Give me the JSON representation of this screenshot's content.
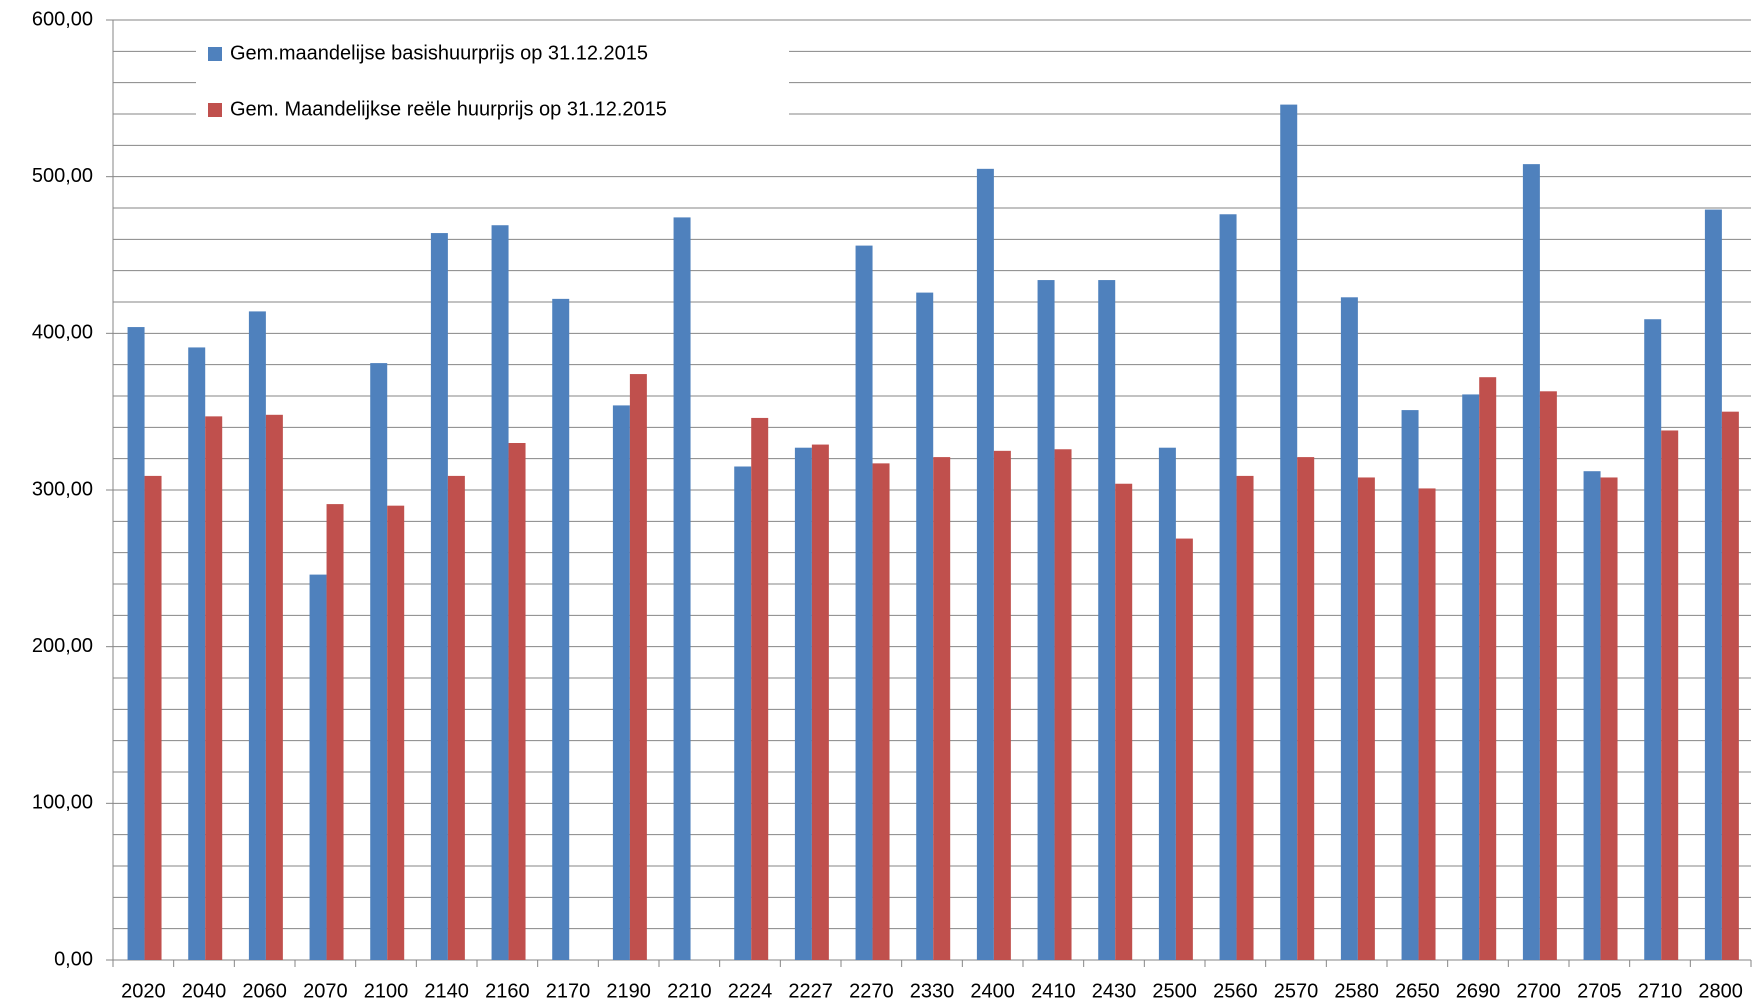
{
  "chart_data": {
    "type": "bar",
    "categories": [
      "2020",
      "2040",
      "2060",
      "2070",
      "2100",
      "2140",
      "2160",
      "2170",
      "2190",
      "2210",
      "2224",
      "2227",
      "2270",
      "2330",
      "2400",
      "2410",
      "2430",
      "2500",
      "2560",
      "2570",
      "2580",
      "2650",
      "2690",
      "2700",
      "2705",
      "2710",
      "2800"
    ],
    "series": [
      {
        "name": "Gem.maandelijse basishuurprijs op 31.12.2015",
        "color": "#4f81bd",
        "values": [
          404,
          391,
          414,
          246,
          381,
          464,
          469,
          422,
          354,
          474,
          315,
          327,
          456,
          426,
          505,
          434,
          434,
          327,
          476,
          546,
          423,
          351,
          361,
          508,
          312,
          409,
          479
        ]
      },
      {
        "name": "Gem. Maandelijkse reële huurprijs op 31.12.2015",
        "color": "#c0504d",
        "values": [
          309,
          347,
          348,
          291,
          290,
          309,
          330,
          null,
          374,
          null,
          346,
          329,
          317,
          321,
          325,
          326,
          304,
          269,
          309,
          321,
          308,
          301,
          372,
          363,
          308,
          338,
          350
        ]
      }
    ],
    "ylim": [
      0,
      600
    ],
    "yticks": [
      {
        "value": 0,
        "label": "0,00"
      },
      {
        "value": 100,
        "label": "100,00"
      },
      {
        "value": 200,
        "label": "200,00"
      },
      {
        "value": 300,
        "label": "300,00"
      },
      {
        "value": 400,
        "label": "400,00"
      },
      {
        "value": 500,
        "label": "500,00"
      },
      {
        "value": 600,
        "label": "600,00"
      }
    ],
    "ygrid": [
      20,
      40,
      60,
      80,
      100,
      120,
      140,
      160,
      180,
      200,
      220,
      240,
      260,
      280,
      300,
      320,
      340,
      360,
      380,
      400,
      420,
      440,
      460,
      480,
      500,
      520,
      540,
      560,
      580,
      600
    ],
    "grid": true,
    "legend": "top-left"
  }
}
